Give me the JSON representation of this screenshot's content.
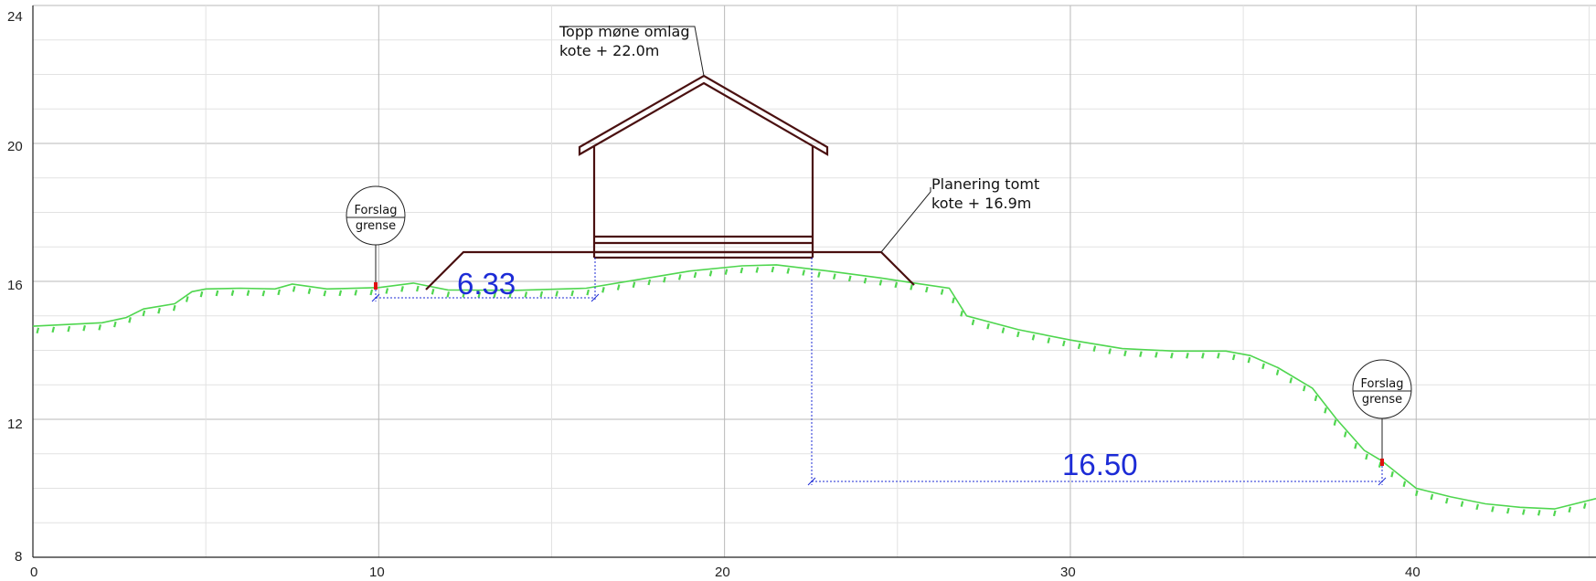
{
  "drawing": {
    "x_axis": {
      "min": 0,
      "max": 45.2,
      "ticks": [
        "0",
        "10",
        "20",
        "30",
        "40"
      ],
      "tick_values": [
        0,
        10,
        20,
        30,
        40
      ],
      "minor_step": 5
    },
    "y_axis": {
      "min": 8,
      "max": 24,
      "ticks": [
        "8",
        "12",
        "16",
        "20",
        "24"
      ],
      "tick_values": [
        8,
        12,
        16,
        20,
        24
      ],
      "minor_step": 1
    },
    "grid": true,
    "colors": {
      "grid_major": "#b9b9b9",
      "grid_minor": "#e2e2e2",
      "terrain": "#4fd64f",
      "building": "#4a1010",
      "dimension": "#1c2bd6",
      "marker": "#e01010",
      "axis": "#222222"
    }
  },
  "labels": {
    "ridge_line1": "Topp møne omlag",
    "ridge_line2": "kote + 22.0m",
    "plateau_line1": "Planering tomt",
    "plateau_line2": "kote + 16.9m",
    "boundary_left_line1": "Forslag",
    "boundary_left_line2": "grense",
    "boundary_right_line1": "Forslag",
    "boundary_right_line2": "grense",
    "dimension_left": "6.33",
    "dimension_right": "16.50"
  },
  "terrain": [
    [
      0,
      14.7
    ],
    [
      1,
      14.75
    ],
    [
      2,
      14.8
    ],
    [
      2.7,
      14.95
    ],
    [
      3.2,
      15.2
    ],
    [
      4.1,
      15.35
    ],
    [
      4.6,
      15.7
    ],
    [
      5.0,
      15.78
    ],
    [
      6,
      15.8
    ],
    [
      7,
      15.78
    ],
    [
      7.5,
      15.92
    ],
    [
      8.5,
      15.78
    ],
    [
      10,
      15.82
    ],
    [
      11,
      15.95
    ],
    [
      12,
      15.75
    ],
    [
      14,
      15.74
    ],
    [
      16,
      15.8
    ],
    [
      17.5,
      16.05
    ],
    [
      19,
      16.3
    ],
    [
      20.5,
      16.45
    ],
    [
      21.5,
      16.48
    ],
    [
      23,
      16.3
    ],
    [
      24.5,
      16.1
    ],
    [
      25.5,
      15.95
    ],
    [
      26.5,
      15.8
    ],
    [
      27.0,
      15.0
    ],
    [
      28.5,
      14.6
    ],
    [
      30,
      14.3
    ],
    [
      31.5,
      14.05
    ],
    [
      33,
      13.98
    ],
    [
      34.5,
      13.98
    ],
    [
      35.2,
      13.85
    ],
    [
      36,
      13.5
    ],
    [
      37,
      12.9
    ],
    [
      37.7,
      12.0
    ],
    [
      38.5,
      11.1
    ],
    [
      39.0,
      10.8
    ],
    [
      40,
      10.0
    ],
    [
      41,
      9.75
    ],
    [
      42,
      9.55
    ],
    [
      43,
      9.45
    ],
    [
      44,
      9.4
    ],
    [
      45.2,
      9.7
    ]
  ]
}
